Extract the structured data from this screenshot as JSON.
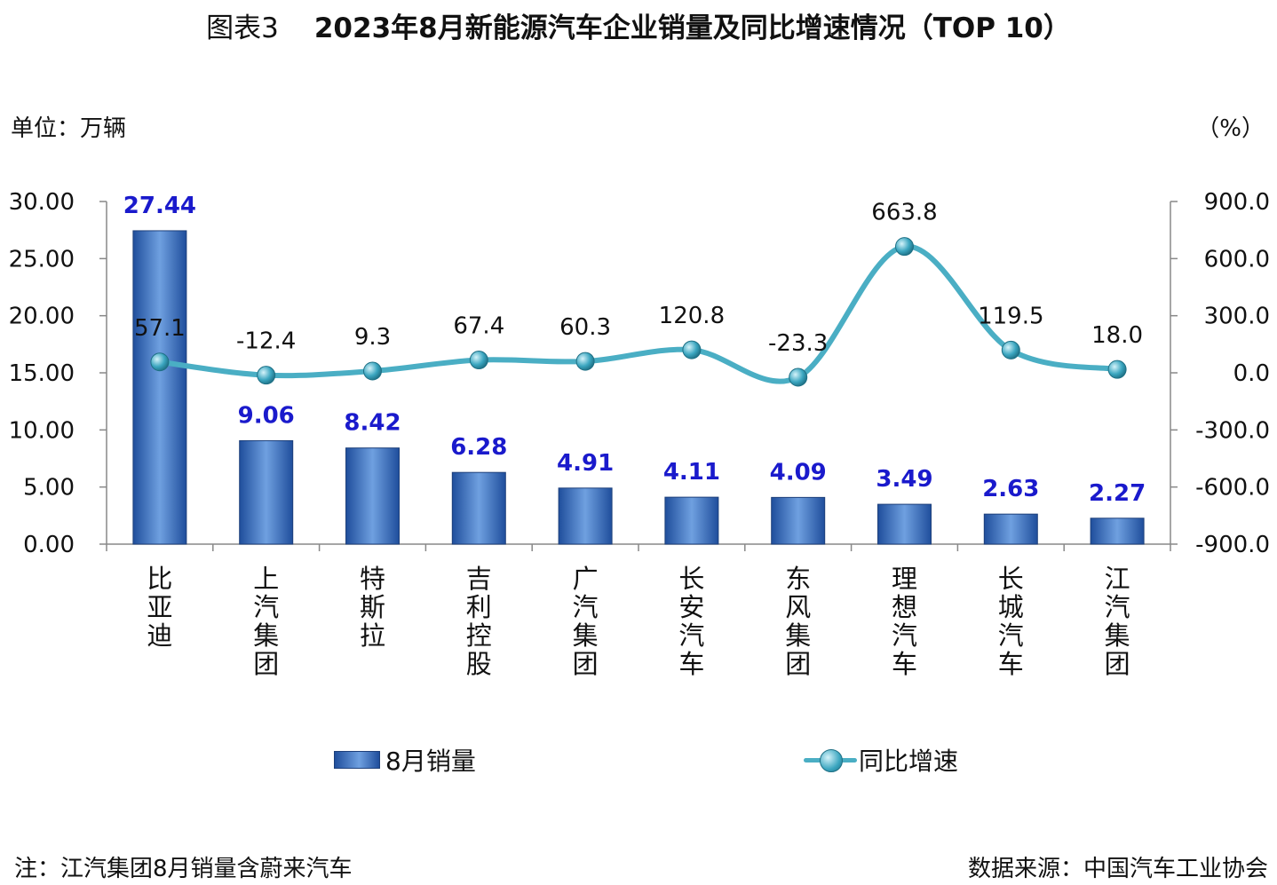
{
  "header": {
    "title_prefix": "图表3",
    "title_main": "2023年8月新能源汽车企业销量及同比增速情况（TOP 10）",
    "unit_left": "单位：万辆",
    "unit_right": "（%）"
  },
  "footer": {
    "note": "注：江汽集团8月销量含蔚来汽车",
    "source": "数据来源：中国汽车工业协会"
  },
  "legend": {
    "bar_label": "8月销量",
    "line_label": "同比增速"
  },
  "colors": {
    "bar_dark": "#1f4e9c",
    "bar_light": "#6fa0e0",
    "line": "#4aaec4",
    "bar_label": "#1a1acc"
  },
  "chart_data": {
    "type": "bar",
    "categories": [
      "比亚迪",
      "上汽集团",
      "特斯拉",
      "吉利控股",
      "广汽集团",
      "长安汽车",
      "东风集团",
      "理想汽车",
      "长城汽车",
      "江汽集团"
    ],
    "series": [
      {
        "name": "8月销量",
        "type": "bar",
        "axis": "left",
        "values": [
          27.44,
          9.06,
          8.42,
          6.28,
          4.91,
          4.11,
          4.09,
          3.49,
          2.63,
          2.27
        ],
        "labels": [
          "27.44",
          "9.06",
          "8.42",
          "6.28",
          "4.91",
          "4.11",
          "4.09",
          "3.49",
          "2.63",
          "2.27"
        ]
      },
      {
        "name": "同比增速",
        "type": "line",
        "axis": "right",
        "values": [
          57.1,
          -12.4,
          9.3,
          67.4,
          60.3,
          120.8,
          -23.3,
          663.8,
          119.5,
          18.0
        ],
        "labels": [
          "57.1",
          "-12.4",
          "9.3",
          "67.4",
          "60.3",
          "120.8",
          "-23.3",
          "663.8",
          "119.5",
          "18.0"
        ]
      }
    ],
    "ylim": [
      0,
      30
    ],
    "y_ticks": [
      "0.00",
      "5.00",
      "10.00",
      "15.00",
      "20.00",
      "25.00",
      "30.00"
    ],
    "y2lim": [
      -900,
      900
    ],
    "y2_ticks": [
      "-900.0",
      "-600.0",
      "-300.0",
      "0.0",
      "300.0",
      "600.0",
      "900.0"
    ],
    "grid": false,
    "legend_position": "bottom"
  }
}
